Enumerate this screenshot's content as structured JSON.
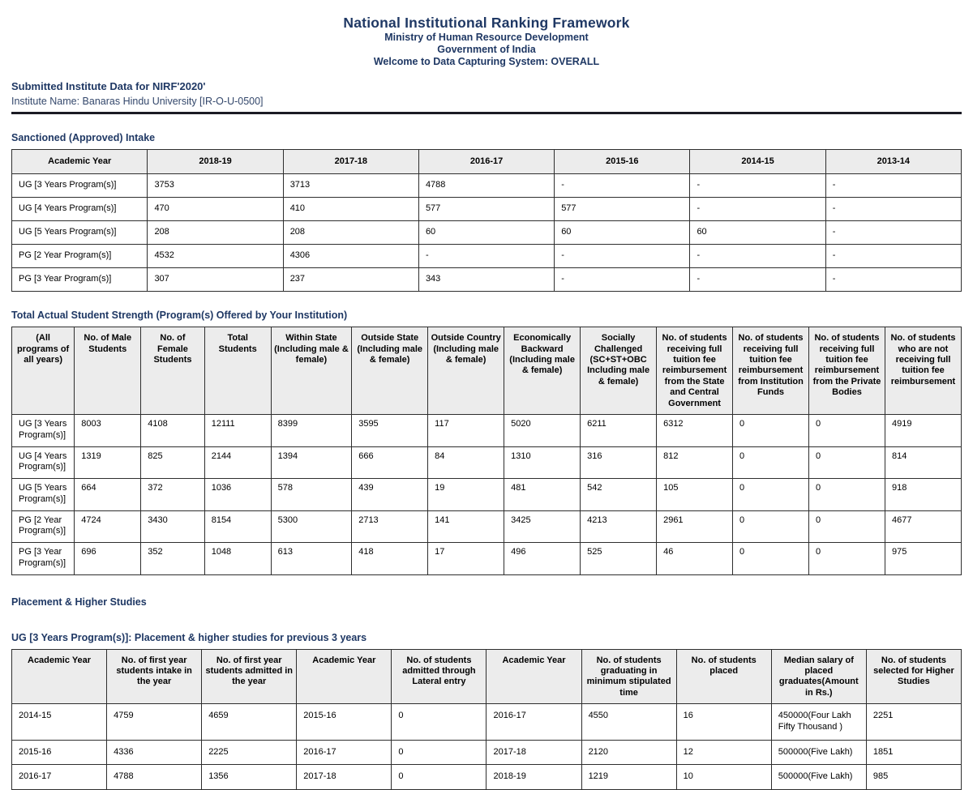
{
  "colors": {
    "accent_navy": "#1F3864",
    "table_header_bg": "#ECECEC",
    "table_border": "#2E2E2E"
  },
  "header": {
    "title": "National Institutional Ranking Framework",
    "subtitle1": "Ministry of Human Resource Development",
    "subtitle2": "Government of India",
    "subtitle3": "Welcome to Data Capturing System: OVERALL"
  },
  "institute": {
    "submitted_line": "Submitted Institute Data for NIRF'2020'",
    "name_line": "Institute Name: Banaras Hindu University [IR-O-U-0500]"
  },
  "sanctioned_intake": {
    "title": "Sanctioned (Approved) Intake",
    "columns": [
      "Academic Year",
      "2018-19",
      "2017-18",
      "2016-17",
      "2015-16",
      "2014-15",
      "2013-14"
    ],
    "rows": [
      [
        "UG [3 Years Program(s)]",
        "3753",
        "3713",
        "4788",
        "-",
        "-",
        "-"
      ],
      [
        "UG [4 Years Program(s)]",
        "470",
        "410",
        "577",
        "577",
        "-",
        "-"
      ],
      [
        "UG [5 Years Program(s)]",
        "208",
        "208",
        "60",
        "60",
        "60",
        "-"
      ],
      [
        "PG [2 Year Program(s)]",
        "4532",
        "4306",
        "-",
        "-",
        "-",
        "-"
      ],
      [
        "PG [3 Year Program(s)]",
        "307",
        "237",
        "343",
        "-",
        "-",
        "-"
      ]
    ]
  },
  "student_strength": {
    "title": "Total Actual Student Strength (Program(s) Offered by Your Institution)",
    "columns": [
      "(All programs of all years)",
      "No. of Male Students",
      "No. of Female Students",
      "Total Students",
      "Within State (Including male & female)",
      "Outside State (Including male & female)",
      "Outside Country (Including male & female)",
      "Economically Backward (Including male & female)",
      "Socially Challenged (SC+ST+OBC Including male & female)",
      "No. of students receiving full tuition fee reimbursement from the State and Central Government",
      "No. of students receiving full tuition fee reimbursement from Institution Funds",
      "No. of students receiving full tuition fee reimbursement from the Private Bodies",
      "No. of students who are not receiving full tuition fee reimbursement"
    ],
    "rows": [
      [
        "UG [3 Years Program(s)]",
        "8003",
        "4108",
        "12111",
        "8399",
        "3595",
        "117",
        "5020",
        "6211",
        "6312",
        "0",
        "0",
        "4919"
      ],
      [
        "UG [4 Years Program(s)]",
        "1319",
        "825",
        "2144",
        "1394",
        "666",
        "84",
        "1310",
        "316",
        "812",
        "0",
        "0",
        "814"
      ],
      [
        "UG [5 Years Program(s)]",
        "664",
        "372",
        "1036",
        "578",
        "439",
        "19",
        "481",
        "542",
        "105",
        "0",
        "0",
        "918"
      ],
      [
        "PG [2 Year Program(s)]",
        "4724",
        "3430",
        "8154",
        "5300",
        "2713",
        "141",
        "3425",
        "4213",
        "2961",
        "0",
        "0",
        "4677"
      ],
      [
        "PG [3 Year Program(s)]",
        "696",
        "352",
        "1048",
        "613",
        "418",
        "17",
        "496",
        "525",
        "46",
        "0",
        "0",
        "975"
      ]
    ]
  },
  "placement": {
    "section_title": "Placement & Higher Studies",
    "table_title": "UG [3 Years Program(s)]: Placement & higher studies for previous 3 years",
    "columns": [
      "Academic Year",
      "No. of first year students intake in the year",
      "No. of first year students admitted in the year",
      "Academic Year",
      "No. of students admitted through Lateral entry",
      "Academic Year",
      "No. of students graduating in minimum stipulated time",
      "No. of students placed",
      "Median salary of placed graduates(Amount in Rs.)",
      "No. of students selected for Higher Studies"
    ],
    "rows": [
      [
        "2014-15",
        "4759",
        "4659",
        "2015-16",
        "0",
        "2016-17",
        "4550",
        "16",
        "450000(Four Lakh Fifty Thousand )",
        "2251"
      ],
      [
        "2015-16",
        "4336",
        "2225",
        "2016-17",
        "0",
        "2017-18",
        "2120",
        "12",
        "500000(Five Lakh)",
        "1851"
      ],
      [
        "2016-17",
        "4788",
        "1356",
        "2017-18",
        "0",
        "2018-19",
        "1219",
        "10",
        "500000(Five Lakh)",
        "985"
      ]
    ]
  }
}
